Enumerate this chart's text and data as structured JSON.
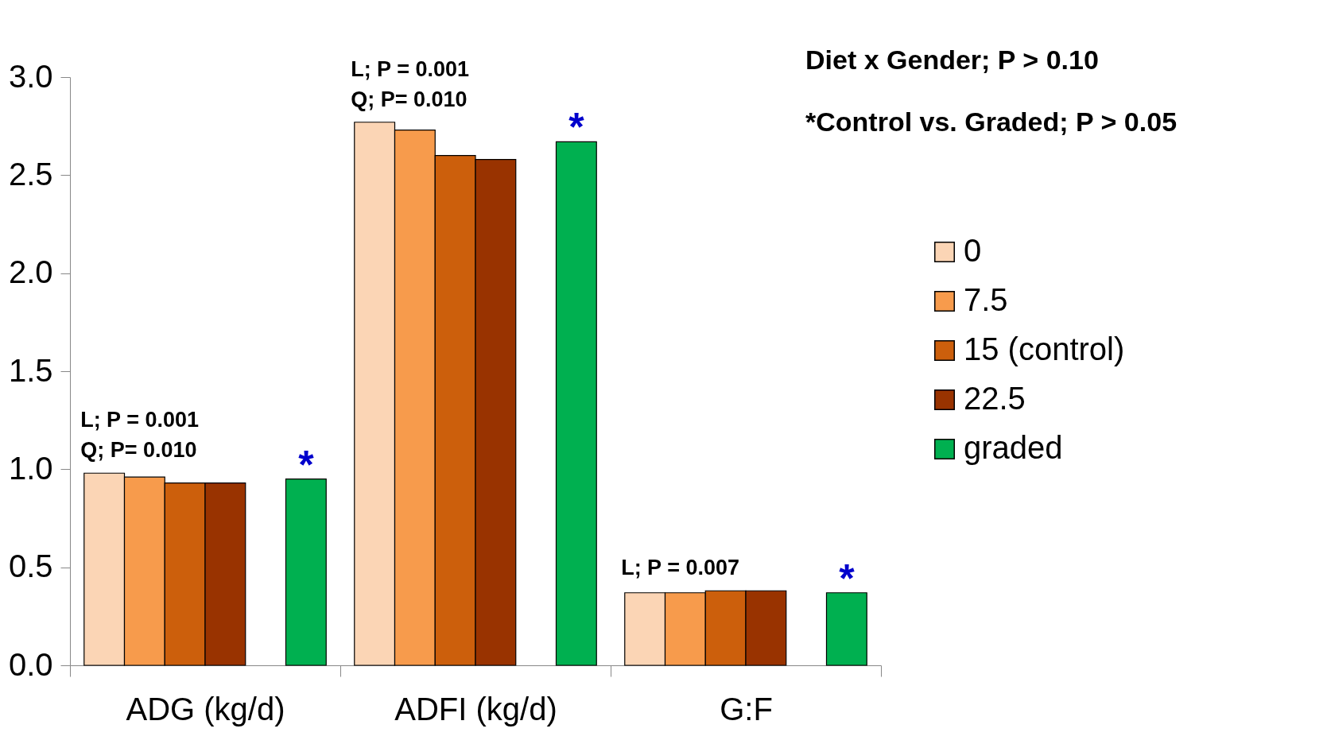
{
  "chart_data": {
    "type": "bar",
    "categories": [
      "ADG (kg/d)",
      "ADFI (kg/d)",
      "G:F"
    ],
    "series": [
      {
        "name": "0",
        "color": "#fbd5b5",
        "values": [
          0.98,
          2.77,
          0.37
        ]
      },
      {
        "name": "7.5",
        "color": "#f79b4c",
        "values": [
          0.96,
          2.73,
          0.37
        ]
      },
      {
        "name": "15 (control)",
        "color": "#cc5f0c",
        "values": [
          0.93,
          2.6,
          0.38
        ]
      },
      {
        "name": "22.5",
        "color": "#993300",
        "values": [
          0.93,
          2.58,
          0.38
        ]
      },
      {
        "name": "graded",
        "color": "#00b050",
        "values": [
          0.95,
          2.67,
          0.37
        ]
      }
    ],
    "ylim": [
      0,
      3.0
    ],
    "yticks": [
      {
        "value": 0,
        "label": "0.0"
      },
      0.5,
      {
        "value": 1,
        "label": "1.0"
      },
      1.5,
      {
        "value": 2,
        "label": "2.0"
      },
      2.5,
      {
        "value": 3,
        "label": "3.0"
      }
    ],
    "annotations": [
      "L; P = 0.001\nQ; P= 0.010",
      "L; P = 0.001\nQ; P= 0.010",
      "L; P = 0.007",
      "*",
      "*",
      "*",
      "Diet x Gender; P > 0.10",
      "*Control vs. Graded; P > 0.05"
    ],
    "legend": "right",
    "grid": false
  }
}
